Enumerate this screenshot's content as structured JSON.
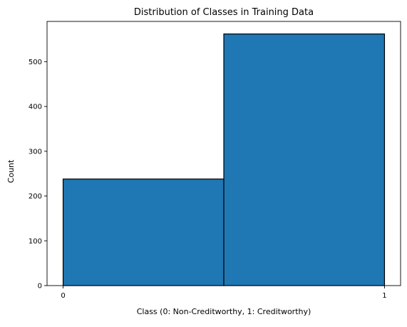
{
  "chart_data": {
    "type": "bar",
    "title": "Distribution of Classes in Training Data",
    "xlabel": "Class (0: Non-Creditworthy, 1: Creditworthy)",
    "ylabel": "Count",
    "bins": [
      {
        "start": 0.0,
        "end": 0.5,
        "value": 238
      },
      {
        "start": 0.5,
        "end": 1.0,
        "value": 562
      }
    ],
    "xlim": [
      -0.05,
      1.05
    ],
    "ylim": [
      0,
      590
    ],
    "xticks": [
      0,
      1
    ],
    "yticks": [
      0,
      100,
      200,
      300,
      400,
      500
    ],
    "grid": false,
    "bar_color": "#1f77b4",
    "edge_color": "#000000"
  }
}
